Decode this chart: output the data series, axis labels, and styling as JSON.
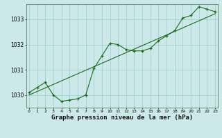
{
  "xlabel": "Graphe pression niveau de la mer (hPa)",
  "x": [
    0,
    1,
    2,
    3,
    4,
    5,
    6,
    7,
    8,
    9,
    10,
    11,
    12,
    13,
    14,
    15,
    16,
    17,
    18,
    19,
    20,
    21,
    22,
    23
  ],
  "y_actual": [
    1030.1,
    1030.3,
    1030.5,
    1030.0,
    1029.75,
    1029.8,
    1029.85,
    1030.0,
    1031.05,
    1031.55,
    1032.05,
    1032.0,
    1031.8,
    1031.75,
    1031.75,
    1031.85,
    1032.15,
    1032.35,
    1032.55,
    1033.05,
    1033.15,
    1033.5,
    1033.4,
    1033.3
  ],
  "y_trend": [
    1030.0,
    1030.14,
    1030.28,
    1030.42,
    1030.56,
    1030.7,
    1030.84,
    1030.98,
    1031.12,
    1031.26,
    1031.4,
    1031.54,
    1031.68,
    1031.82,
    1031.96,
    1032.1,
    1032.24,
    1032.38,
    1032.52,
    1032.66,
    1032.8,
    1032.94,
    1033.08,
    1033.22
  ],
  "line_color": "#1a6b1a",
  "bg_color": "#cce8e8",
  "grid_color": "#99cccc",
  "ylim": [
    1029.5,
    1033.6
  ],
  "yticks": [
    1030,
    1031,
    1032,
    1033
  ],
  "xticks": [
    0,
    1,
    2,
    3,
    4,
    5,
    6,
    7,
    8,
    9,
    10,
    11,
    12,
    13,
    14,
    15,
    16,
    17,
    18,
    19,
    20,
    21,
    22,
    23
  ]
}
